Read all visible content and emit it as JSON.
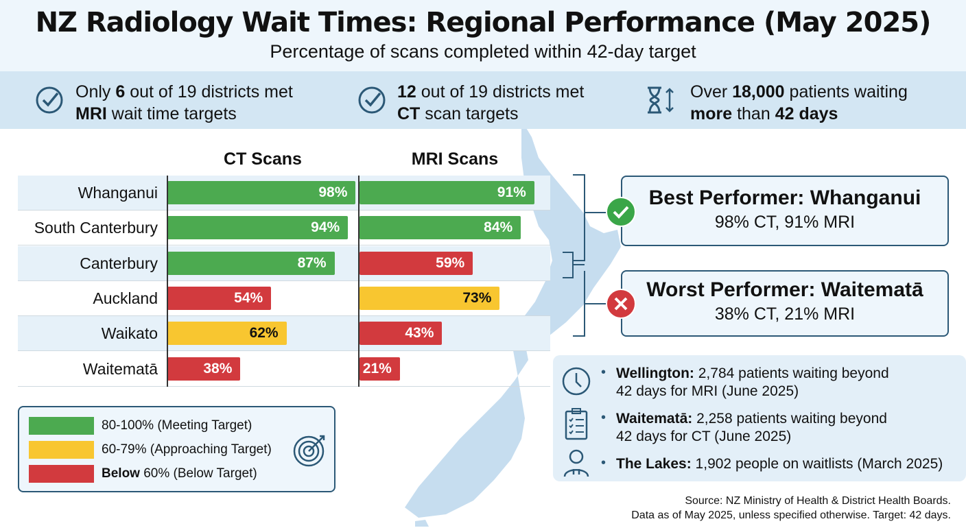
{
  "header": {
    "title": "NZ Radiology Wait Times: Regional Performance (May 2025)",
    "subtitle": "Percentage of scans completed within 42-day target"
  },
  "stats": [
    {
      "icon": "check-circle-icon",
      "pre": "Only ",
      "bold1": "6",
      "mid": " out of 19 districts met",
      "bold2": "MRI",
      "post": " wait time targets"
    },
    {
      "icon": "check-circle-icon",
      "pre": "",
      "bold1": "12",
      "mid": " out of 19 districts met",
      "bold2": "CT",
      "post": " scan targets"
    },
    {
      "icon": "hourglass-icon",
      "pre": "Over ",
      "bold1": "18,000",
      "mid": " patients waiting",
      "bold2": "more",
      "post": " than ",
      "bold3": "42 days"
    }
  ],
  "colors": {
    "green": "#4caa50",
    "yellow": "#f8c630",
    "red": "#d23a3e",
    "navy": "#2b5876"
  },
  "chart_data": {
    "type": "bar",
    "orientation": "horizontal",
    "categories": [
      "Whanganui",
      "South Canterbury",
      "Canterbury",
      "Auckland",
      "Waikato",
      "Waitematā"
    ],
    "series": [
      {
        "name": "CT Scans",
        "values": [
          98,
          94,
          87,
          54,
          62,
          38
        ]
      },
      {
        "name": "MRI Scans",
        "values": [
          91,
          84,
          59,
          73,
          43,
          21
        ]
      }
    ],
    "xlim": [
      0,
      100
    ],
    "unit": "%",
    "color_rule": "80-100 green, 60-79 yellow, below 60 red"
  },
  "legend": [
    {
      "color": "green",
      "bold": "",
      "text": "80-100% (Meeting Target)"
    },
    {
      "color": "yellow",
      "bold": "",
      "text": "60-79% (Approaching Target)"
    },
    {
      "color": "red",
      "bold": "Below",
      "text": " 60% (Below Target)"
    }
  ],
  "best": {
    "title": "Best Performer: Whanganui",
    "sub": "98% CT, 91% MRI"
  },
  "worst": {
    "title": "Worst Performer: Waitematā",
    "sub": "38% CT, 21% MRI"
  },
  "notes": [
    {
      "icon": "clock-icon",
      "bold": "Wellington:",
      "l1": " 2,784 patients waiting beyond",
      "l2": "42 days for MRI (June 2025)"
    },
    {
      "icon": "clipboard-checklist-icon",
      "bold": "Waitematā:",
      "l1": " 2,258 patients waiting beyond",
      "l2": "42 days for CT (June 2025)"
    },
    {
      "icon": "person-icon",
      "bold": "The Lakes:",
      "l1": " 1,902 people on waitlists (March 2025)",
      "l2": ""
    }
  ],
  "source": {
    "l1": "Source: NZ Ministry of Health & District Health Boards.",
    "l2": "Data as of May 2025, unless specified otherwise. Target: 42 days."
  }
}
